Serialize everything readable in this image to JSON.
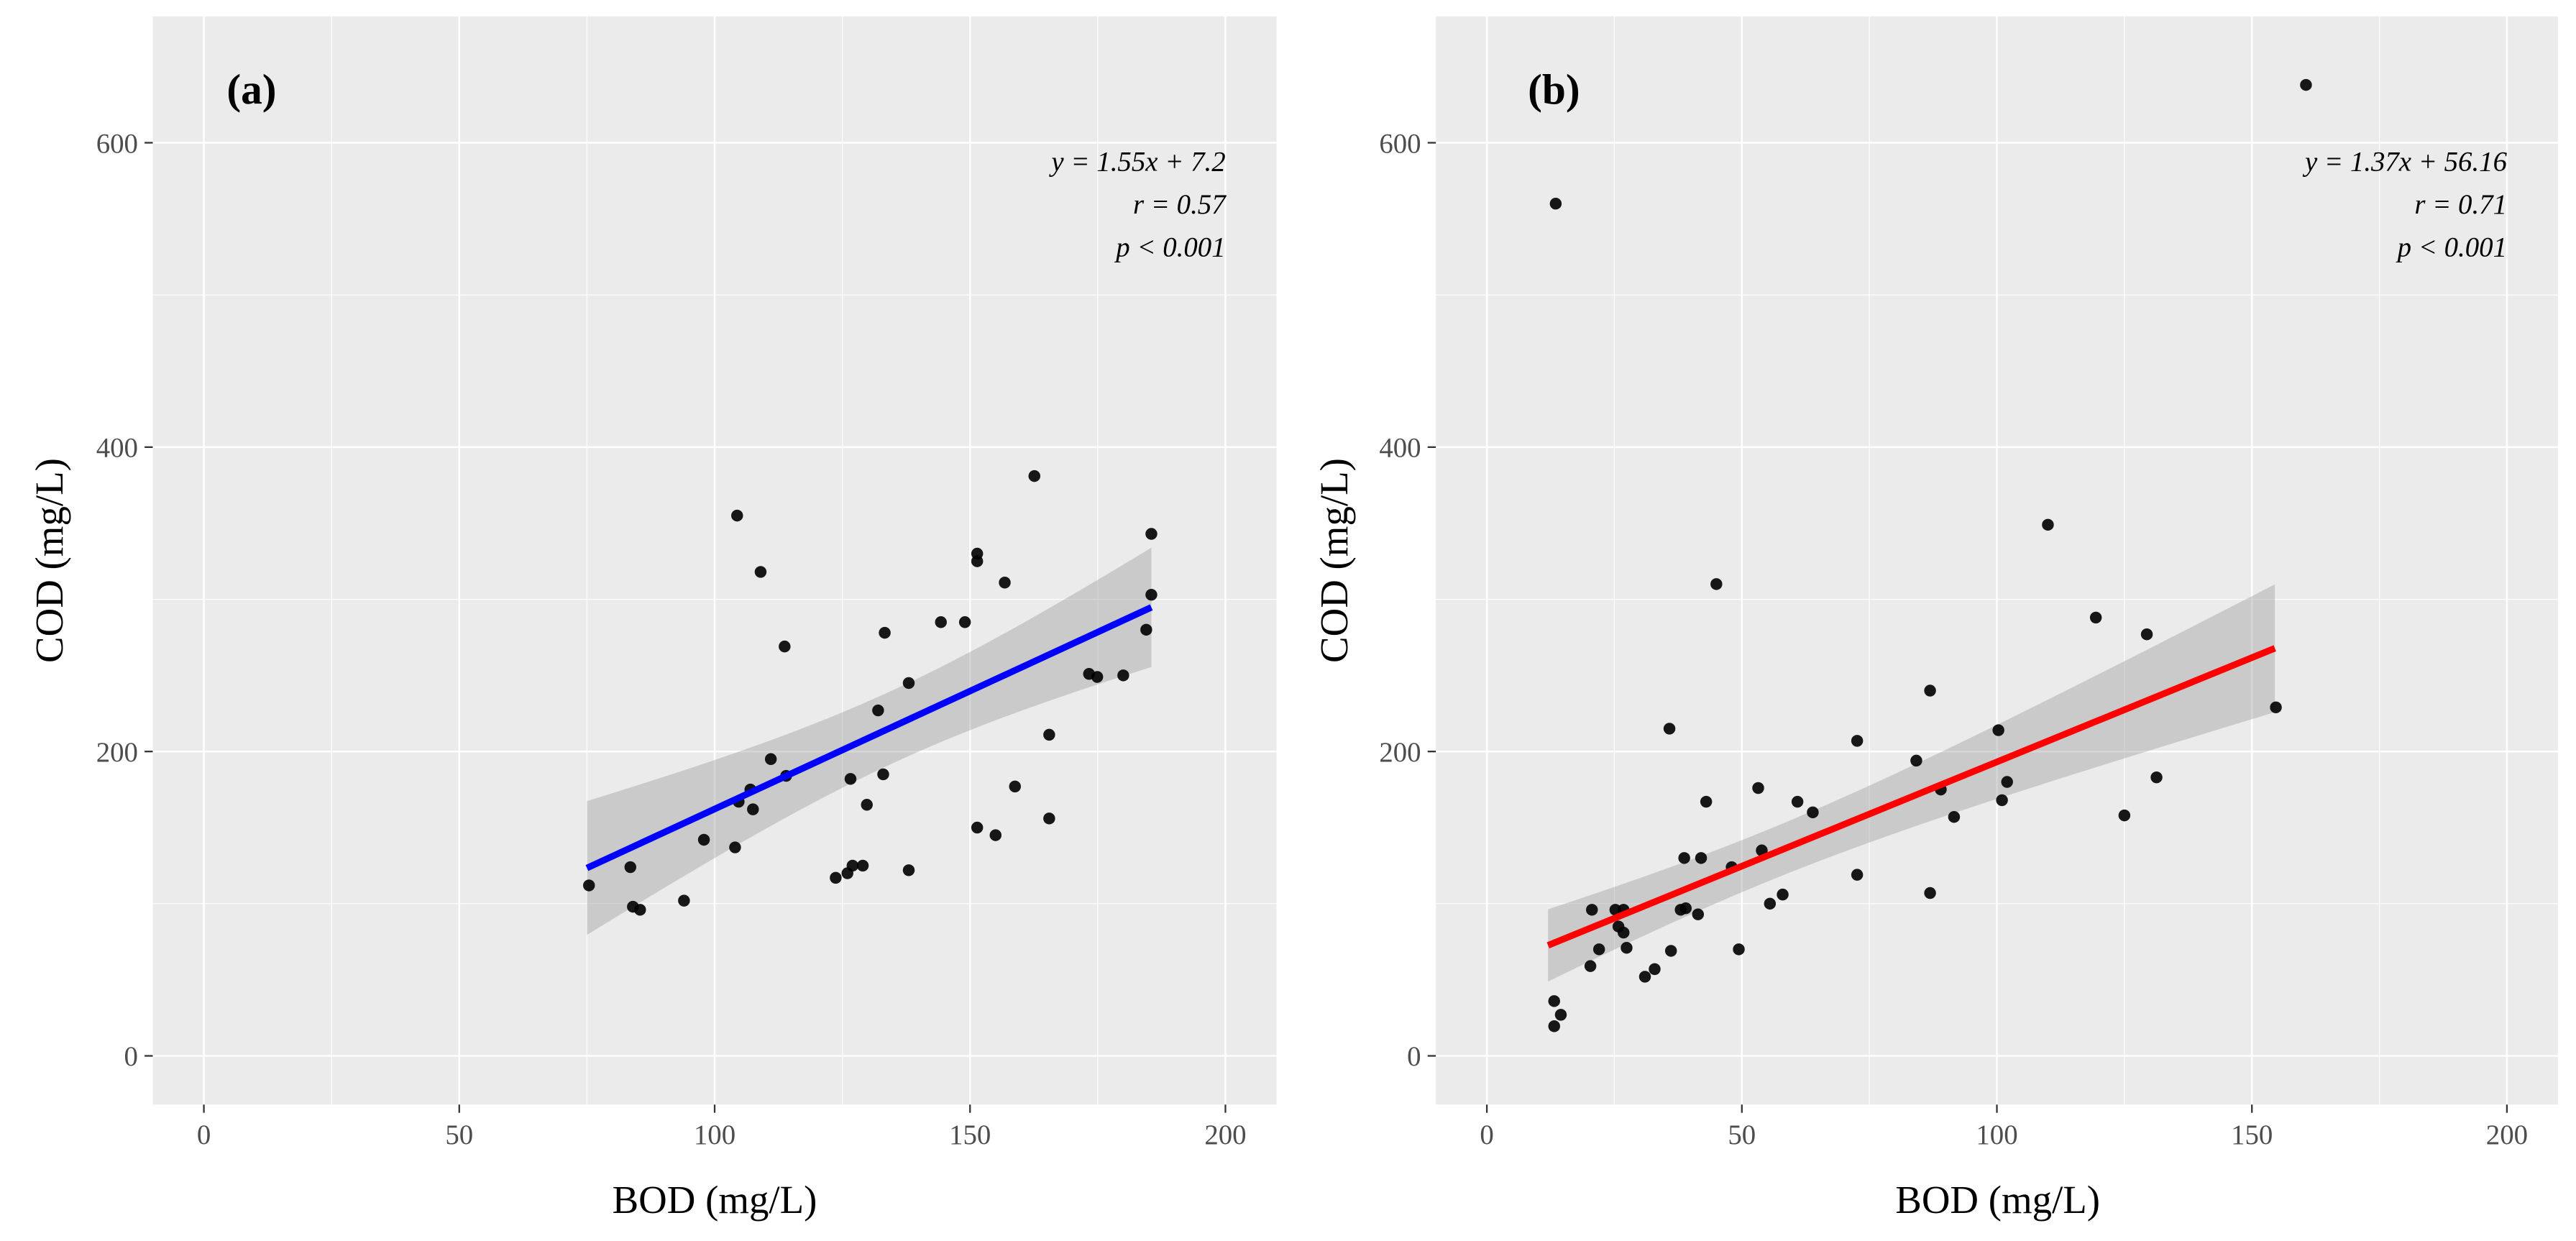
{
  "chart_data": [
    {
      "type": "scatter",
      "panel_label": "(a)",
      "xlabel": "BOD (mg/L)",
      "ylabel": "COD (mg/L)",
      "xlim": [
        -10,
        210
      ],
      "ylim": [
        -32,
        683
      ],
      "xticks": [
        0,
        50,
        100,
        150,
        200
      ],
      "yticks": [
        0,
        200,
        400,
        600
      ],
      "grid": true,
      "fit": {
        "slope": 1.55,
        "intercept": 7.2,
        "x_range": [
          75,
          185.5
        ],
        "color": "#0000FF",
        "ci_center_x": 135,
        "ci_min_halfwidth": 24,
        "ci_curvature": 0.377
      },
      "stats": [
        "y = 1.55x + 7.2",
        "r = 0.57",
        "p < 0.001"
      ],
      "points": [
        [
          75.4,
          112
        ],
        [
          83.5,
          124
        ],
        [
          84,
          98
        ],
        [
          85.4,
          96
        ],
        [
          94,
          102
        ],
        [
          97.9,
          142
        ],
        [
          104,
          137
        ],
        [
          104.4,
          355
        ],
        [
          104.7,
          167
        ],
        [
          107,
          175
        ],
        [
          107.5,
          162
        ],
        [
          109,
          318
        ],
        [
          111,
          195
        ],
        [
          113.7,
          269
        ],
        [
          114,
          184
        ],
        [
          123.7,
          117
        ],
        [
          126,
          120
        ],
        [
          126.6,
          182
        ],
        [
          127,
          125
        ],
        [
          129,
          125
        ],
        [
          129.8,
          165
        ],
        [
          132,
          227
        ],
        [
          133,
          185
        ],
        [
          133.3,
          278
        ],
        [
          138,
          122
        ],
        [
          138,
          245
        ],
        [
          144.3,
          285
        ],
        [
          149,
          285
        ],
        [
          151.4,
          330
        ],
        [
          151.4,
          325
        ],
        [
          151.4,
          150
        ],
        [
          155,
          145
        ],
        [
          156.8,
          311
        ],
        [
          158.8,
          177
        ],
        [
          162.6,
          381
        ],
        [
          165.5,
          156
        ],
        [
          165.5,
          211
        ],
        [
          173.3,
          251
        ],
        [
          174.9,
          249
        ],
        [
          180,
          250
        ],
        [
          185.5,
          303
        ],
        [
          185.5,
          343
        ],
        [
          184.5,
          280
        ]
      ]
    },
    {
      "type": "scatter",
      "panel_label": "(b)",
      "xlabel": "BOD (mg/L)",
      "ylabel": "COD (mg/L)",
      "xlim": [
        -10,
        210
      ],
      "ylim": [
        -32,
        683
      ],
      "xticks": [
        0,
        50,
        100,
        150,
        200
      ],
      "yticks": [
        0,
        200,
        400,
        600
      ],
      "grid": true,
      "fit": {
        "slope": 1.37,
        "intercept": 56.16,
        "x_range": [
          12,
          154.5
        ],
        "color": "#FF0000",
        "ci_center_x": 55,
        "ci_min_halfwidth": 17,
        "ci_curvature": 0.149
      },
      "stats": [
        "y = 1.37x + 56.16",
        "r = 0.71",
        "p < 0.001"
      ],
      "points": [
        [
          160.6,
          638
        ],
        [
          13.5,
          560
        ],
        [
          110,
          349
        ],
        [
          119.4,
          288
        ],
        [
          129.4,
          277
        ],
        [
          45,
          310
        ],
        [
          86.9,
          240
        ],
        [
          154.7,
          229
        ],
        [
          35.8,
          215
        ],
        [
          72.6,
          207
        ],
        [
          100.3,
          214
        ],
        [
          84.2,
          194
        ],
        [
          102,
          180
        ],
        [
          131.3,
          183
        ],
        [
          89,
          175
        ],
        [
          101,
          168
        ],
        [
          43,
          167
        ],
        [
          53.2,
          176
        ],
        [
          60.9,
          167
        ],
        [
          63.9,
          160
        ],
        [
          125,
          158
        ],
        [
          91.6,
          157
        ],
        [
          72.6,
          119
        ],
        [
          53.9,
          135
        ],
        [
          42,
          130
        ],
        [
          48,
          124
        ],
        [
          55.5,
          100
        ],
        [
          58,
          106
        ],
        [
          86.9,
          107
        ],
        [
          49.4,
          70
        ],
        [
          38.7,
          130
        ],
        [
          38,
          96
        ],
        [
          41.4,
          93
        ],
        [
          36.1,
          69
        ],
        [
          26.8,
          96
        ],
        [
          25.2,
          96
        ],
        [
          25.8,
          85
        ],
        [
          26.8,
          81
        ],
        [
          20.6,
          96
        ],
        [
          22,
          70
        ],
        [
          20.3,
          59
        ],
        [
          27.4,
          71
        ],
        [
          31,
          52
        ],
        [
          32.9,
          57
        ],
        [
          13.2,
          36
        ],
        [
          14.5,
          27
        ],
        [
          13.2,
          19.5
        ],
        [
          39,
          97
        ]
      ]
    }
  ]
}
